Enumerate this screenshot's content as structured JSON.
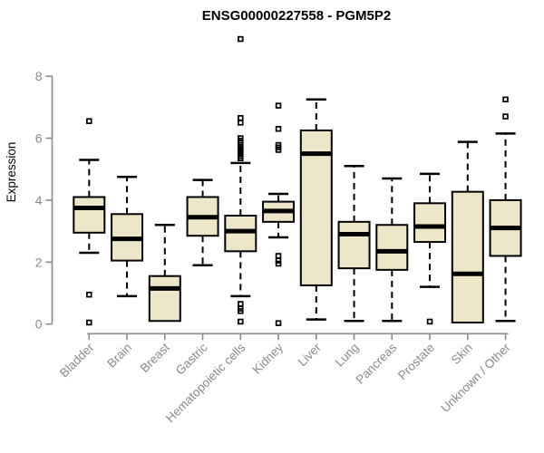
{
  "chart_data": {
    "type": "boxplot",
    "title": "ENSG00000227558 - PGM5P2",
    "ylabel": "Expression",
    "xlabel": "",
    "ylim": [
      0,
      9.4
    ],
    "yticks": [
      0,
      2,
      4,
      6,
      8
    ],
    "grid": false,
    "legend": "none",
    "categories": [
      "Bladder",
      "Brain",
      "Breast",
      "Gastric",
      "Hematopoietic cells",
      "Kidney",
      "Liver",
      "Lung",
      "Pancreas",
      "Prostate",
      "Skin",
      "Unknown / Other"
    ],
    "series": [
      {
        "name": "Bladder",
        "low": 2.3,
        "q1": 2.95,
        "median": 3.75,
        "q3": 4.1,
        "high": 5.3,
        "outliers": [
          6.55,
          0.95,
          0.05
        ]
      },
      {
        "name": "Brain",
        "low": 0.9,
        "q1": 2.05,
        "median": 2.75,
        "q3": 3.55,
        "high": 4.75,
        "outliers": []
      },
      {
        "name": "Breast",
        "low": 0.1,
        "q1": 0.1,
        "median": 1.15,
        "q3": 1.55,
        "high": 3.2,
        "outliers": []
      },
      {
        "name": "Gastric",
        "low": 1.9,
        "q1": 2.85,
        "median": 3.45,
        "q3": 4.1,
        "high": 4.65,
        "outliers": []
      },
      {
        "name": "Hematopoietic cells",
        "low": 0.9,
        "q1": 2.35,
        "median": 3.0,
        "q3": 3.5,
        "high": 5.2,
        "outliers": [
          9.2,
          6.65,
          6.5,
          6.0,
          5.92,
          5.85,
          5.78,
          5.72,
          5.66,
          5.6,
          5.54,
          5.48,
          5.42,
          5.35,
          0.65,
          0.5,
          0.42,
          0.08
        ]
      },
      {
        "name": "Kidney",
        "low": 2.8,
        "q1": 3.3,
        "median": 3.65,
        "q3": 3.95,
        "high": 4.2,
        "outliers": [
          7.05,
          6.3,
          5.78,
          5.7,
          5.62,
          2.2,
          2.05,
          1.95,
          0.03
        ]
      },
      {
        "name": "Liver",
        "low": 0.15,
        "q1": 1.25,
        "median": 5.5,
        "q3": 6.25,
        "high": 7.25,
        "outliers": []
      },
      {
        "name": "Lung",
        "low": 0.1,
        "q1": 1.8,
        "median": 2.9,
        "q3": 3.3,
        "high": 5.1,
        "outliers": []
      },
      {
        "name": "Pancreas",
        "low": 0.1,
        "q1": 1.75,
        "median": 2.35,
        "q3": 3.2,
        "high": 4.7,
        "outliers": []
      },
      {
        "name": "Prostate",
        "low": 1.2,
        "q1": 2.65,
        "median": 3.15,
        "q3": 3.9,
        "high": 4.85,
        "outliers": [
          0.08
        ]
      },
      {
        "name": "Skin",
        "low": 0.05,
        "q1": 0.05,
        "median": 1.62,
        "q3": 4.27,
        "high": 5.88,
        "outliers": []
      },
      {
        "name": "Unknown / Other",
        "low": 0.1,
        "q1": 2.2,
        "median": 3.1,
        "q3": 4.0,
        "high": 6.15,
        "outliers": [
          7.25,
          6.7
        ]
      }
    ],
    "colors": {
      "box_fill": "#EDE6C8",
      "box_border": "#000000",
      "median": "#000000",
      "whisker": "#000000",
      "outlier": "#000000",
      "axis": "#8A8A8A",
      "tick_text": "#8A8A8A",
      "title_text": "#000000"
    }
  }
}
